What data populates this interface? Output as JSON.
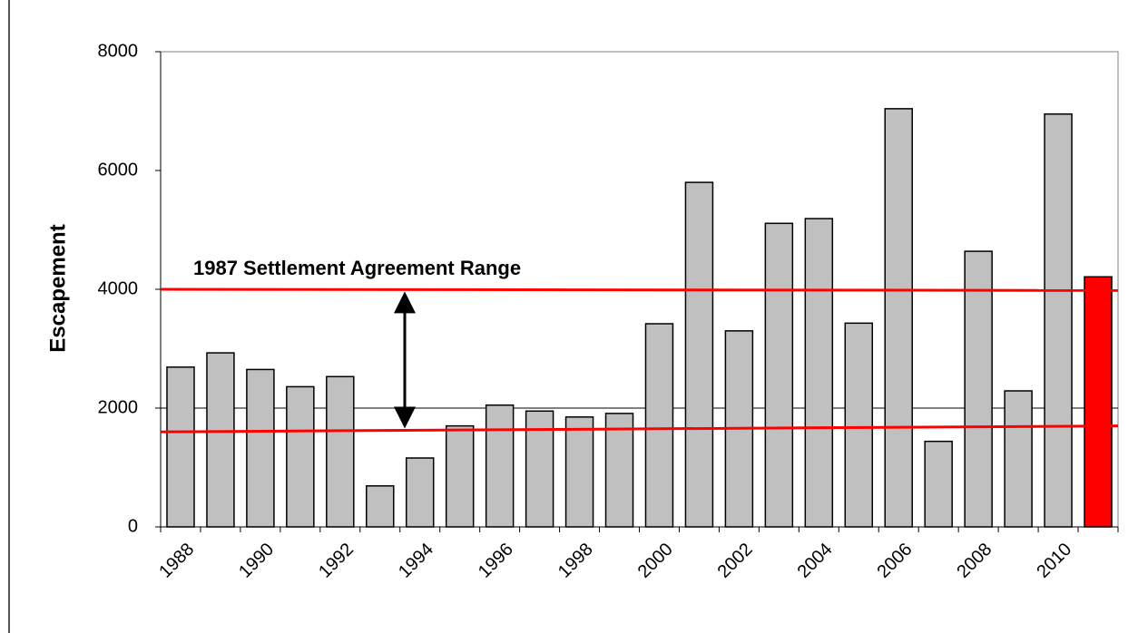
{
  "chart_data": {
    "type": "bar",
    "ylabel": "Escapement",
    "annotation": "1987 Settlement Agreement Range",
    "categories": [
      "1988",
      null,
      "1990",
      null,
      "1992",
      null,
      "1994",
      null,
      "1996",
      null,
      "1998",
      null,
      "2000",
      null,
      "2002",
      null,
      "2004",
      null,
      "2006",
      null,
      "2008",
      null,
      "2010",
      null
    ],
    "values": [
      2690,
      2930,
      2650,
      2360,
      2530,
      690,
      1160,
      1700,
      2050,
      1950,
      1850,
      1910,
      3420,
      5800,
      3300,
      5110,
      5190,
      3430,
      7040,
      1440,
      4640,
      2290,
      6950,
      4210
    ],
    "colors": [
      "#c0c0c0",
      "#c0c0c0",
      "#c0c0c0",
      "#c0c0c0",
      "#c0c0c0",
      "#c0c0c0",
      "#c0c0c0",
      "#c0c0c0",
      "#c0c0c0",
      "#c0c0c0",
      "#c0c0c0",
      "#c0c0c0",
      "#c0c0c0",
      "#c0c0c0",
      "#c0c0c0",
      "#c0c0c0",
      "#c0c0c0",
      "#c0c0c0",
      "#c0c0c0",
      "#c0c0c0",
      "#c0c0c0",
      "#c0c0c0",
      "#c0c0c0",
      "#ff0000"
    ],
    "reference_lines": [
      {
        "start": 4000,
        "end": 3980,
        "color": "#ff0000"
      },
      {
        "start": 1600,
        "end": 1700,
        "color": "#ff0000"
      }
    ],
    "gridlines": [
      2000
    ],
    "ylim": [
      0,
      8000
    ],
    "yticks": [
      0,
      2000,
      4000,
      6000,
      8000
    ]
  }
}
